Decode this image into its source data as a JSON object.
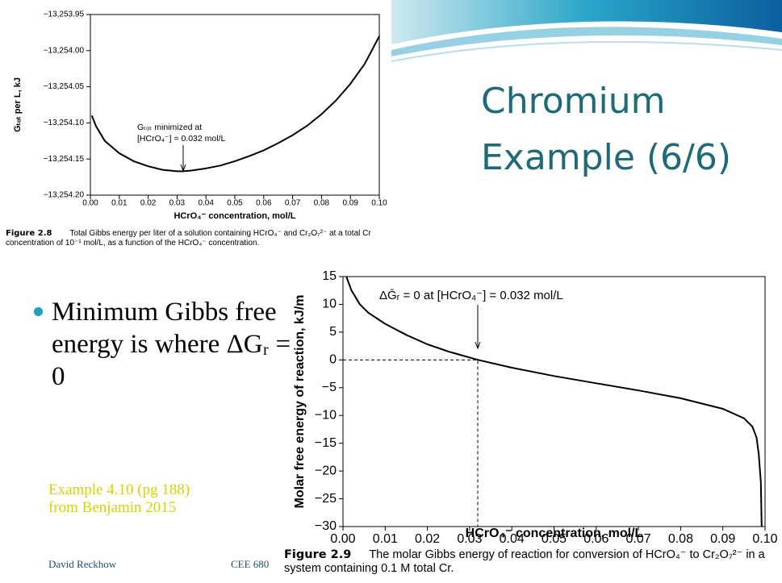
{
  "slide": {
    "title_lines": [
      "Chromium",
      "Example (6/6)"
    ],
    "bullet": "Minimum Gibbs free energy is where ΔGᵣ = 0",
    "note": "Example 4.10 (pg 188) from Benjamin 2015",
    "footer_left": "David Reckhow",
    "footer_right": "CEE 680"
  },
  "captions": [
    {
      "label": "Figure 2.8",
      "text": "Total Gibbs energy per liter of a solution containing HCrO₄⁻ and Cr₂O₇²⁻ at a total Cr concentration of 10⁻¹ mol/L, as a function of the HCrO₄⁻ concentration."
    },
    {
      "label": "Figure 2.9",
      "text": "The molar Gibbs energy of reaction for conversion of HCrO₄⁻ to Cr₂O₇²⁻ in a system containing 0.1 M total Cr."
    }
  ],
  "chart_data": [
    {
      "type": "line",
      "xlabel": "HCrO₄⁻ concentration, mol/L",
      "ylabel": "Gₜₒₜ per L, kJ",
      "annotation": [
        "Gₜₒₜ minimized at",
        "[HCrO₄⁻] = 0.032 mol/L"
      ],
      "color": "#000000",
      "x": [
        0.0005,
        0.002,
        0.005,
        0.01,
        0.015,
        0.02,
        0.025,
        0.03,
        0.032,
        0.035,
        0.04,
        0.045,
        0.05,
        0.055,
        0.06,
        0.065,
        0.07,
        0.075,
        0.08,
        0.085,
        0.09,
        0.095,
        0.1
      ],
      "values": [
        -13254.09,
        -13254.105,
        -13254.125,
        -13254.142,
        -13254.153,
        -13254.16,
        -13254.165,
        -13254.167,
        -13254.167,
        -13254.166,
        -13254.163,
        -13254.159,
        -13254.153,
        -13254.146,
        -13254.138,
        -13254.128,
        -13254.117,
        -13254.104,
        -13254.088,
        -13254.069,
        -13254.046,
        -13254.018,
        -13253.98
      ],
      "xlim": [
        0,
        0.1
      ],
      "ylim": [
        -13254.2,
        -13253.95
      ],
      "xticks": [
        {
          "value": 0,
          "label": "0.00"
        },
        0.01,
        0.02,
        0.03,
        0.04,
        0.05,
        0.06,
        0.07,
        0.08,
        0.09,
        {
          "value": 0.1,
          "label": "0.10"
        }
      ],
      "yticks": [
        {
          "value": -13254.2,
          "label": "−13,254.20"
        },
        {
          "value": -13254.15,
          "label": "−13,254.15"
        },
        {
          "value": -13254.1,
          "label": "−13,254.10"
        },
        {
          "value": -13254.05,
          "label": "−13,254.05"
        },
        {
          "value": -13254.0,
          "label": "−13,254.00"
        },
        {
          "value": -13253.95,
          "label": "−13,253.95"
        }
      ]
    },
    {
      "type": "line",
      "xlabel": "HCrO₄⁻ concentration, mol/L",
      "ylabel": "Molar free energy of reaction, kJ/m",
      "annotation": [
        "ΔḠᵣ = 0 at [HCrO₄⁻] = 0.032 mol/L"
      ],
      "color": "#000000",
      "x": [
        0.0008,
        0.002,
        0.004,
        0.006,
        0.01,
        0.015,
        0.02,
        0.025,
        0.032,
        0.04,
        0.05,
        0.06,
        0.07,
        0.08,
        0.09,
        0.095,
        0.097,
        0.098,
        0.0985,
        0.099,
        0.0992
      ],
      "values": [
        15,
        12.5,
        10,
        8.5,
        6.5,
        4.5,
        2.8,
        1.5,
        0,
        -1.4,
        -2.9,
        -4.2,
        -5.5,
        -6.9,
        -8.8,
        -10.5,
        -12,
        -14,
        -17,
        -22,
        -30
      ],
      "xlim": [
        0,
        0.1
      ],
      "ylim": [
        -30,
        15
      ],
      "xticks": [
        {
          "value": 0,
          "label": "0.00"
        },
        0.01,
        0.02,
        0.03,
        0.04,
        0.05,
        0.06,
        0.07,
        0.08,
        0.09,
        {
          "value": 0.1,
          "label": "0.10"
        }
      ],
      "yticks": [
        {
          "value": -30,
          "label": "−30"
        },
        {
          "value": -25,
          "label": "−25"
        },
        {
          "value": -20,
          "label": "−20"
        },
        {
          "value": -15,
          "label": "−15"
        },
        {
          "value": -10,
          "label": "−10"
        },
        {
          "value": -5,
          "label": "−5"
        },
        0,
        5,
        10,
        15
      ]
    }
  ]
}
